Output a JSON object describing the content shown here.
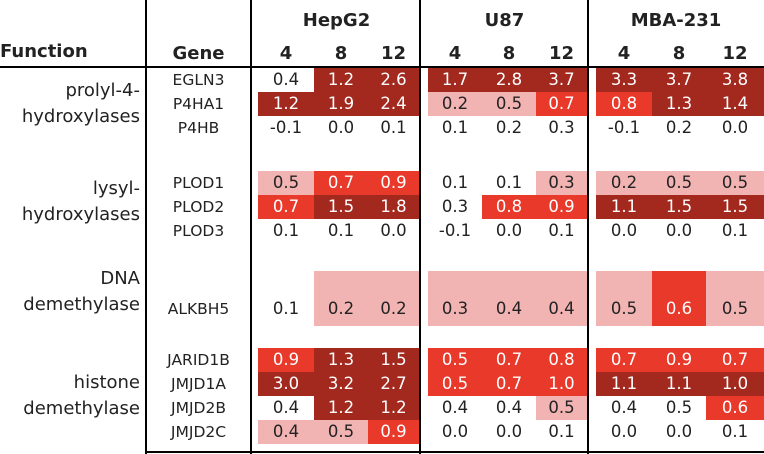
{
  "headers": {
    "function": "Function",
    "gene": "Gene",
    "cell_lines": [
      "HepG2",
      "U87",
      "MBA-231"
    ],
    "timepoints": [
      "4",
      "8",
      "12"
    ]
  },
  "colors": {
    "none": "#ffffff",
    "light": "#f2b3b3",
    "mid": "#e9392b",
    "dark": "#a3291f"
  },
  "groups": [
    {
      "function": "prolyl-4-hydroxylases",
      "function_lines": [
        "prolyl-4-",
        "hydroxylases"
      ]
    },
    {
      "function": "lysyl-hydroxylases",
      "function_lines": [
        "lysyl-",
        "hydroxylases"
      ]
    },
    {
      "function": "DNA demethylase",
      "function_lines": [
        "DNA",
        "demethylase"
      ]
    },
    {
      "function": "histone demethylase",
      "function_lines": [
        "histone",
        "demethylase"
      ]
    }
  ],
  "rows": [
    {
      "gene": "EGLN3",
      "values": [
        "0.4",
        "1.2",
        "2.6",
        "1.7",
        "2.8",
        "3.7",
        "3.3",
        "3.7",
        "3.8"
      ],
      "shade": [
        "none",
        "dark",
        "dark",
        "dark",
        "dark",
        "dark",
        "dark",
        "dark",
        "dark"
      ]
    },
    {
      "gene": "P4HA1",
      "values": [
        "1.2",
        "1.9",
        "2.4",
        "0.2",
        "0.5",
        "0.7",
        "0.8",
        "1.3",
        "1.4"
      ],
      "shade": [
        "dark",
        "dark",
        "dark",
        "light",
        "light",
        "mid",
        "mid",
        "dark",
        "dark"
      ]
    },
    {
      "gene": "P4HB",
      "values": [
        "-0.1",
        "0.0",
        "0.1",
        "0.1",
        "0.2",
        "0.3",
        "-0.1",
        "0.2",
        "0.0"
      ],
      "shade": [
        "none",
        "none",
        "none",
        "none",
        "none",
        "none",
        "none",
        "none",
        "none"
      ]
    },
    {
      "gene": "PLOD1",
      "values": [
        "0.5",
        "0.7",
        "0.9",
        "0.1",
        "0.1",
        "0.3",
        "0.2",
        "0.5",
        "0.5"
      ],
      "shade": [
        "light",
        "mid",
        "mid",
        "none",
        "none",
        "light",
        "light",
        "light",
        "light"
      ]
    },
    {
      "gene": "PLOD2",
      "values": [
        "0.7",
        "1.5",
        "1.8",
        "0.3",
        "0.8",
        "0.9",
        "1.1",
        "1.5",
        "1.5"
      ],
      "shade": [
        "mid",
        "dark",
        "dark",
        "none",
        "mid",
        "mid",
        "dark",
        "dark",
        "dark"
      ]
    },
    {
      "gene": "PLOD3",
      "values": [
        "0.1",
        "0.1",
        "0.0",
        "-0.1",
        "0.0",
        "0.1",
        "0.0",
        "0.0",
        "0.1"
      ],
      "shade": [
        "none",
        "none",
        "none",
        "none",
        "none",
        "none",
        "none",
        "none",
        "none"
      ]
    },
    {
      "gene": "ALKBH5",
      "values": [
        "0.1",
        "0.2",
        "0.2",
        "0.3",
        "0.4",
        "0.4",
        "0.5",
        "0.6",
        "0.5"
      ],
      "shade": [
        "none",
        "light",
        "light",
        "light",
        "light",
        "light",
        "light",
        "mid",
        "light"
      ]
    },
    {
      "gene": "JARID1B",
      "values": [
        "0.9",
        "1.3",
        "1.5",
        "0.5",
        "0.7",
        "0.8",
        "0.7",
        "0.9",
        "0.7"
      ],
      "shade": [
        "mid",
        "dark",
        "dark",
        "mid",
        "mid",
        "mid",
        "mid",
        "mid",
        "mid"
      ]
    },
    {
      "gene": "JMJD1A",
      "values": [
        "3.0",
        "3.2",
        "2.7",
        "0.5",
        "0.7",
        "1.0",
        "1.1",
        "1.1",
        "1.0"
      ],
      "shade": [
        "dark",
        "dark",
        "dark",
        "mid",
        "mid",
        "mid",
        "dark",
        "dark",
        "dark"
      ]
    },
    {
      "gene": "JMJD2B",
      "values": [
        "0.4",
        "1.2",
        "1.2",
        "0.4",
        "0.4",
        "0.5",
        "0.4",
        "0.5",
        "0.6"
      ],
      "shade": [
        "none",
        "dark",
        "dark",
        "none",
        "none",
        "light",
        "none",
        "none",
        "mid"
      ]
    },
    {
      "gene": "JMJD2C",
      "values": [
        "0.4",
        "0.5",
        "0.9",
        "0.0",
        "0.0",
        "0.1",
        "0.0",
        "0.0",
        "0.1"
      ],
      "shade": [
        "light",
        "light",
        "mid",
        "none",
        "none",
        "none",
        "none",
        "none",
        "none"
      ]
    }
  ]
}
